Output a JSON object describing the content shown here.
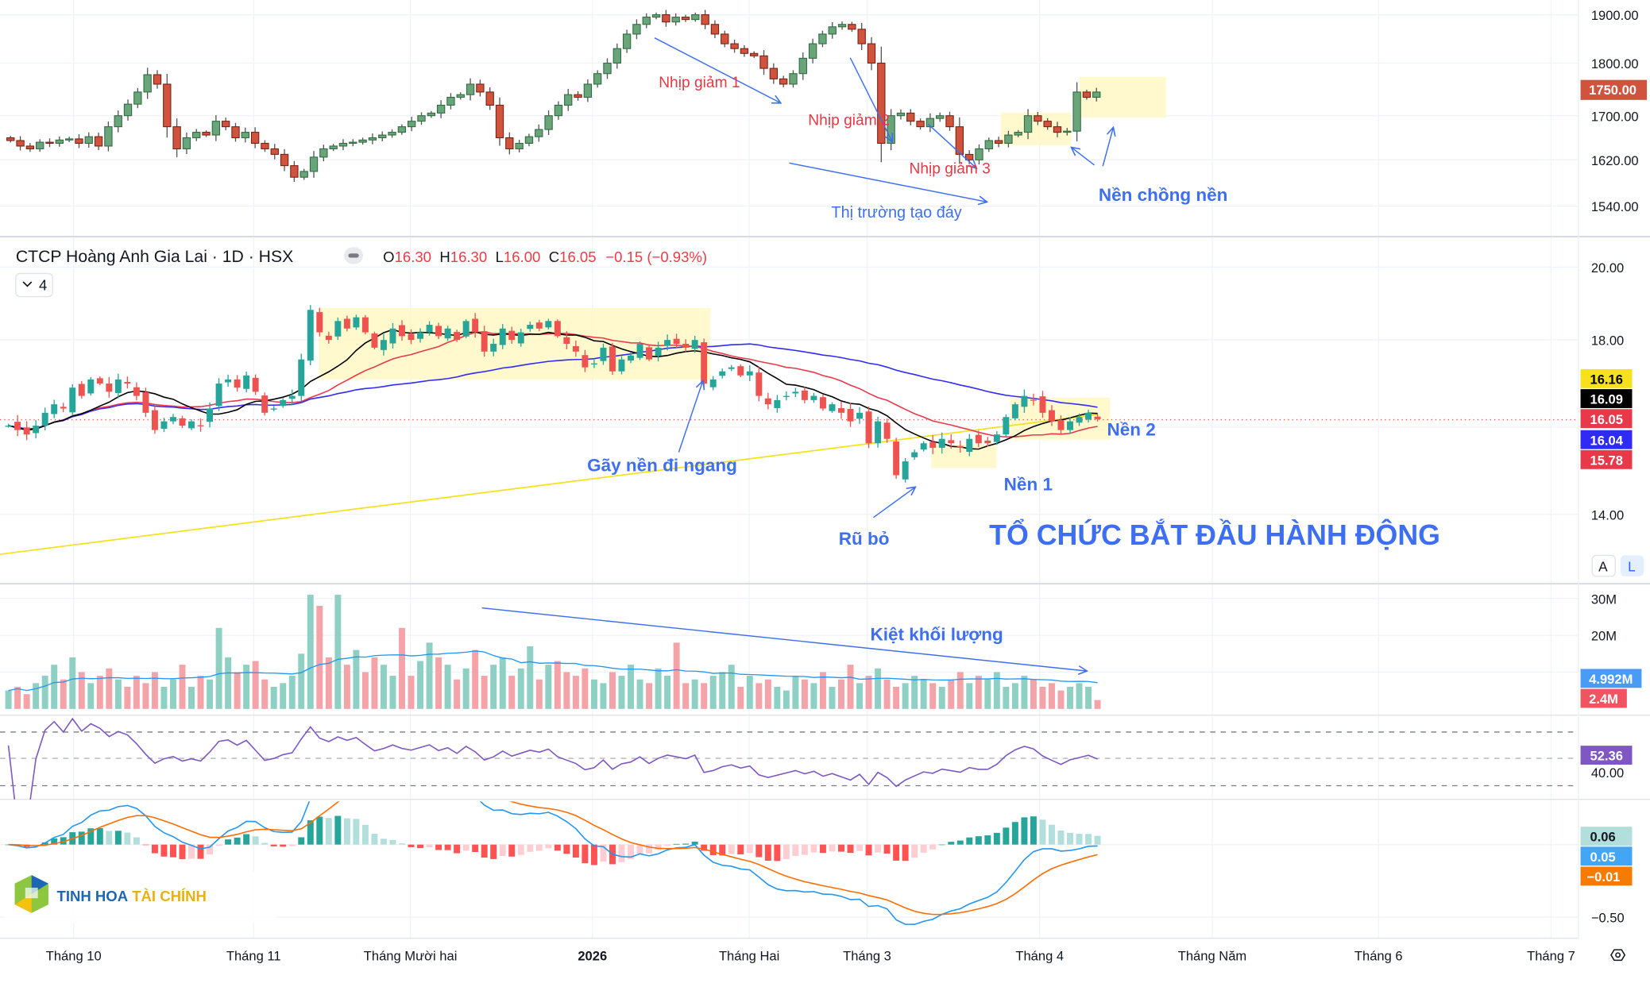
{
  "header": {
    "title": "CTCP Hoàng Anh Gia Lai · 1D · HSX",
    "o_label": "O",
    "o": "16.30",
    "h_label": "H",
    "h": "16.30",
    "l_label": "L",
    "l": "16.00",
    "c_label": "C",
    "c": "16.05",
    "change": "−0.15 (−0.93%)",
    "indicators_toggle": "4"
  },
  "annotations": {
    "nhip1": "Nhịp giảm 1",
    "nhip2": "Nhịp giảm 2",
    "nhip3": "Nhịp giảm 3",
    "tao_day": "Thị trường tạo đáy",
    "nen_chong_nen": "Nền chồng nền",
    "gay_nen": "Gãy nền đi ngang",
    "ru_bo": "Rũ bỏ",
    "nen1": "Nền 1",
    "nen2": "Nền 2",
    "to_chuc": "TỔ CHỨC BẮT ĐẦU HÀNH ĐỘNG",
    "kiet_kl": "Kiệt khối lượng"
  },
  "logo": {
    "part1": "TINH HOA",
    "part2": "TÀI CHÍNH"
  },
  "axis": {
    "top_ticks": [
      "1900.00",
      "1800.00",
      "1700.00",
      "1620.00",
      "1540.00"
    ],
    "top_badge": "1750.00",
    "price_ticks": [
      "20.00",
      "18.00",
      "14.00"
    ],
    "price_badges": [
      "16.16",
      "16.09",
      "16.05",
      "16.04",
      "15.78"
    ],
    "scale_buttons": [
      "A",
      "L"
    ],
    "vol_ticks": [
      "30M",
      "20M"
    ],
    "vol_badges": [
      "4.992M",
      "2.4M"
    ],
    "rsi_badge": "52.36",
    "rsi_tick": "40.00",
    "macd_badges": [
      "0.06",
      "0.05",
      "−0.01"
    ],
    "macd_tick": "−0.50",
    "x_labels": [
      "Tháng 10",
      "Tháng 11",
      "Tháng Mười hai",
      "2026",
      "Tháng Hai",
      "Tháng 3",
      "Tháng 4",
      "Tháng Năm",
      "Tháng 6",
      "Tháng 7"
    ]
  },
  "colors": {
    "up": "#26a69a",
    "down": "#ef5350",
    "top_up": "#6aa47a",
    "top_down": "#d0533d",
    "ma10": "#000000",
    "ma20": "#e8394a",
    "ma50": "#2f2af5",
    "ma200": "#f7e01c",
    "annotation_blue": "#3d6ff0",
    "annotation_red": "#e53945",
    "highlight": "#fff8c4",
    "rsi": "#7e57c2",
    "macd": "#2196f3",
    "signal": "#ff6d00"
  },
  "chart_data": [
    {
      "type": "candlestick",
      "title": "Index (upper pane)",
      "ylim": [
        1540,
        1900
      ],
      "close": [
        1655,
        1645,
        1640,
        1652,
        1650,
        1656,
        1658,
        1650,
        1662,
        1645,
        1680,
        1700,
        1722,
        1745,
        1778,
        1760,
        1680,
        1640,
        1660,
        1670,
        1665,
        1690,
        1680,
        1660,
        1670,
        1650,
        1640,
        1630,
        1610,
        1590,
        1600,
        1625,
        1640,
        1645,
        1650,
        1652,
        1656,
        1660,
        1665,
        1670,
        1680,
        1690,
        1700,
        1705,
        1720,
        1735,
        1740,
        1760,
        1745,
        1720,
        1660,
        1640,
        1650,
        1662,
        1675,
        1700,
        1720,
        1740,
        1735,
        1760,
        1780,
        1800,
        1830,
        1860,
        1880,
        1895,
        1900,
        1885,
        1895,
        1890,
        1900,
        1880,
        1860,
        1840,
        1830,
        1820,
        1815,
        1790,
        1770,
        1760,
        1780,
        1810,
        1840,
        1860,
        1875,
        1880,
        1870,
        1840,
        1800,
        1650,
        1700,
        1705,
        1690,
        1680,
        1695,
        1700,
        1680,
        1630,
        1620,
        1640,
        1655,
        1650,
        1665,
        1670,
        1700,
        1690,
        1680,
        1670,
        1672,
        1745,
        1735,
        1745
      ]
    },
    {
      "type": "candlestick",
      "title": "CTCP Hoàng Anh Gia Lai · 1D · HSX",
      "ylim": [
        13,
        20.5
      ],
      "close": [
        15.9,
        15.8,
        15.7,
        15.9,
        16.2,
        16.4,
        16.3,
        16.8,
        16.6,
        17.0,
        16.9,
        16.7,
        17.0,
        16.9,
        16.6,
        16.2,
        15.8,
        16.0,
        16.1,
        15.9,
        16.0,
        15.9,
        16.3,
        16.9,
        17.0,
        16.8,
        17.1,
        16.7,
        16.2,
        16.3,
        16.5,
        16.6,
        17.5,
        18.8,
        18.2,
        18.0,
        18.5,
        18.3,
        18.6,
        18.2,
        17.8,
        18.0,
        18.3,
        18.1,
        18.0,
        18.2,
        18.4,
        18.1,
        18.3,
        18.0,
        18.5,
        18.2,
        17.7,
        17.9,
        18.3,
        18.0,
        18.2,
        18.4,
        18.3,
        18.5,
        18.1,
        17.9,
        17.7,
        17.3,
        17.4,
        17.8,
        17.2,
        17.5,
        17.6,
        17.9,
        17.5,
        17.8,
        18.0,
        17.9,
        17.8,
        18.0,
        16.9,
        17.0,
        17.2,
        17.3,
        17.1,
        17.2,
        16.6,
        16.4,
        16.5,
        16.6,
        16.7,
        16.5,
        16.6,
        16.3,
        16.4,
        16.2,
        16.0,
        16.2,
        15.5,
        16.0,
        15.6,
        14.8,
        15.1,
        15.3,
        15.5,
        15.4,
        15.6,
        15.5,
        15.4,
        15.6,
        15.5,
        15.5,
        15.7,
        16.1,
        16.4,
        16.6,
        16.5,
        16.2,
        16.0,
        15.8,
        16.0,
        16.1,
        16.2,
        16.05
      ],
      "volume_millions": [
        5,
        6,
        4,
        7,
        9,
        12,
        8,
        14,
        10,
        7,
        9,
        11,
        8,
        6,
        9,
        7,
        10,
        6,
        8,
        12,
        6,
        9,
        8,
        22,
        14,
        10,
        12,
        13,
        8,
        6,
        7,
        9,
        15,
        31,
        28,
        14,
        31,
        12,
        16,
        10,
        14,
        12,
        9,
        22,
        9,
        13,
        18,
        14,
        12,
        8,
        11,
        16,
        9,
        12,
        14,
        9,
        11,
        17,
        8,
        12,
        13,
        10,
        9,
        11,
        8,
        7,
        10,
        9,
        12,
        8,
        7,
        11,
        9,
        18,
        7,
        8,
        7,
        9,
        10,
        12,
        6,
        9,
        7,
        8,
        6,
        5,
        9,
        8,
        7,
        10,
        6,
        8,
        12,
        7,
        9,
        11,
        8,
        6,
        7,
        9,
        8,
        7,
        6,
        8,
        10,
        7,
        9,
        8,
        10,
        6,
        7,
        9,
        8,
        6,
        7,
        5,
        6,
        7,
        6,
        2.4
      ],
      "ma200": [
        13.2,
        16.16
      ],
      "last_values": {
        "ma200": 16.16,
        "ma10": 16.09,
        "close": 16.05,
        "ma50": 16.04,
        "ma20": 15.78,
        "vol_ma": 4.992,
        "volume": 2.4,
        "rsi": 52.36,
        "macd_hist": 0.06,
        "macd": 0.05,
        "signal": -0.01
      }
    }
  ]
}
